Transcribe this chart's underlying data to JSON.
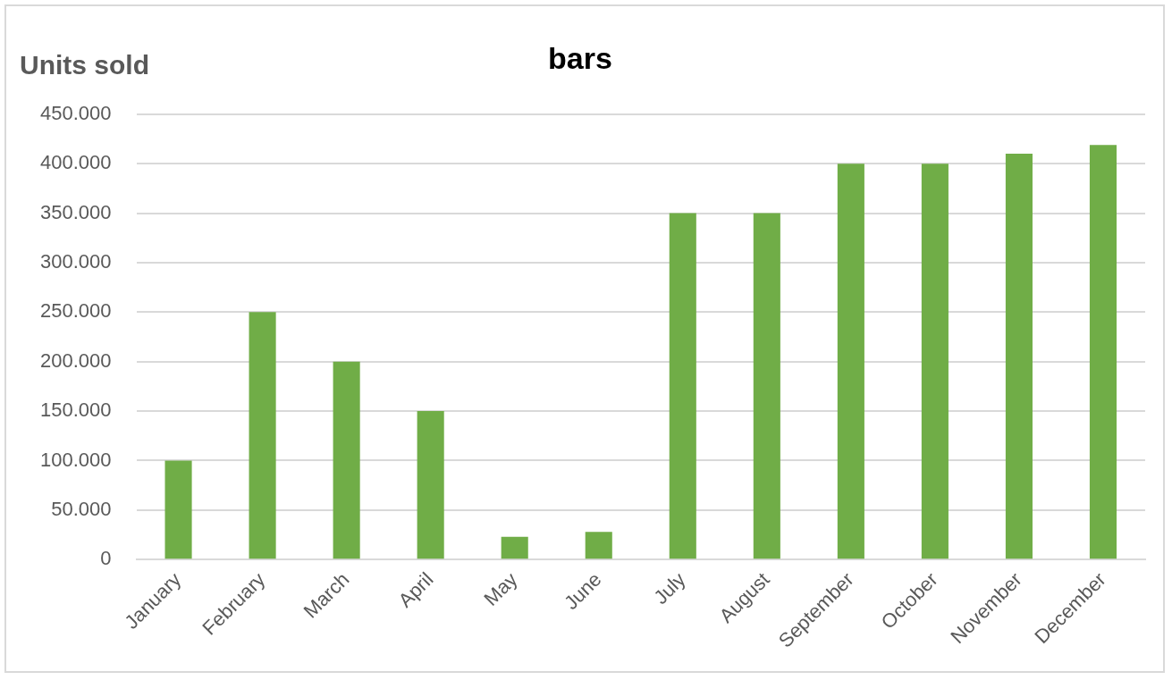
{
  "chart_data": {
    "type": "bar",
    "title": "bars",
    "ylabel": "Units sold",
    "categories": [
      "January",
      "February",
      "March",
      "April",
      "May",
      "June",
      "July",
      "August",
      "September",
      "October",
      "November",
      "December"
    ],
    "values": [
      100000,
      250000,
      200000,
      150000,
      23000,
      28000,
      350000,
      350000,
      400000,
      400000,
      410000,
      419000
    ],
    "color": "#70ad47",
    "ylim": [
      0,
      450000
    ],
    "yticks": [
      {
        "value": 0,
        "label": "0"
      },
      {
        "value": 50000,
        "label": "50.000"
      },
      {
        "value": 100000,
        "label": "100.000"
      },
      {
        "value": 150000,
        "label": "150.000"
      },
      {
        "value": 200000,
        "label": "200.000"
      },
      {
        "value": 250000,
        "label": "250.000"
      },
      {
        "value": 300000,
        "label": "300.000"
      },
      {
        "value": 350000,
        "label": "350.000"
      },
      {
        "value": 400000,
        "label": "400.000"
      },
      {
        "value": 450000,
        "label": "450.000"
      }
    ],
    "grid": "y",
    "legend": false
  }
}
